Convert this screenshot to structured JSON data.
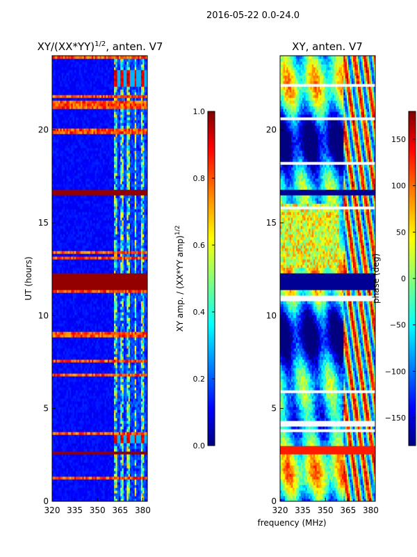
{
  "suptitle": "2016-05-22 0.0-24.0",
  "chart_data": [
    {
      "type": "heatmap",
      "title_main": "XY/(XX*YY)",
      "title_exp": "1/2",
      "title_rest": ", anten. V7",
      "ylabel": "UT (hours)",
      "xlim": [
        320,
        383
      ],
      "ylim": [
        0,
        24
      ],
      "xticks": [
        "320",
        "335",
        "350",
        "365",
        "380"
      ],
      "xtick_values": [
        320,
        335,
        350,
        365,
        380
      ],
      "yticks": [
        "0",
        "5",
        "10",
        "15",
        "20"
      ],
      "ytick_values": [
        0,
        5,
        10,
        15,
        20
      ],
      "bad_time_ranges_hours": [
        [
          11.4,
          12.3
        ],
        [
          16.5,
          16.7
        ],
        [
          2.5,
          2.7
        ]
      ],
      "colorbar": {
        "label_main": "XY amp. / (XX*YY amp)",
        "label_exp": "1/2",
        "range": [
          0.0,
          1.0
        ],
        "ticks": [
          "0.0",
          "0.2",
          "0.4",
          "0.6",
          "0.8",
          "1.0"
        ],
        "tick_values": [
          0.0,
          0.2,
          0.4,
          0.6,
          0.8,
          1.0
        ]
      }
    },
    {
      "type": "heatmap",
      "title": "XY, anten. V7",
      "xlabel": "frequency (MHz)",
      "xlim": [
        320,
        383
      ],
      "ylim": [
        0,
        24
      ],
      "xticks": [
        "320",
        "335",
        "350",
        "365",
        "380"
      ],
      "xtick_values": [
        320,
        335,
        350,
        365,
        380
      ],
      "yticks": [
        "0",
        "5",
        "10",
        "15",
        "20"
      ],
      "ytick_values": [
        0,
        5,
        10,
        15,
        20
      ],
      "bad_time_ranges_hours": [
        [
          11.4,
          12.3
        ],
        [
          16.5,
          16.7
        ],
        [
          2.5,
          3.0
        ]
      ],
      "colorbar": {
        "label": "phase (deg)",
        "range": [
          -180,
          180
        ],
        "ticks": [
          "−150",
          "−100",
          "−50",
          "0",
          "50",
          "100",
          "150"
        ],
        "tick_values": [
          -150,
          -100,
          -50,
          0,
          50,
          100,
          150
        ]
      }
    }
  ],
  "colors": {
    "jet_low": "#00007f",
    "jet_blue": "#0000ff",
    "jet_cyan": "#00ffff",
    "jet_yellow": "#ffff00",
    "jet_red": "#ff0000",
    "jet_high": "#7f0000"
  }
}
